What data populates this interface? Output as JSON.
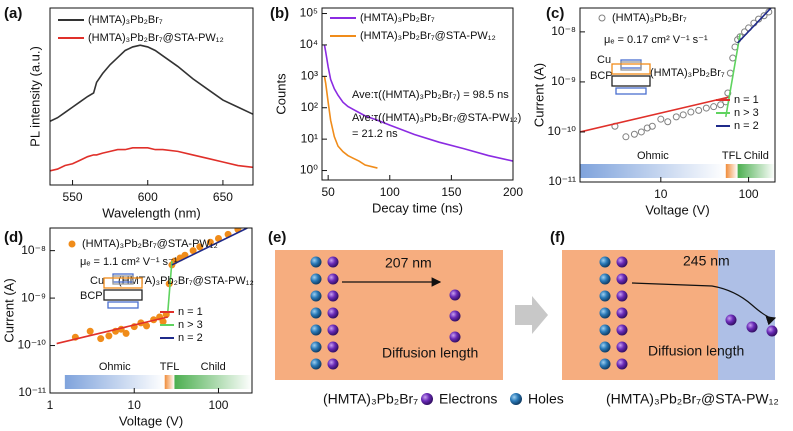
{
  "chart_data": [
    {
      "panel": "(a)",
      "type": "line",
      "xlabel": "Wavelength (nm)",
      "ylabel": "PL intensity (a.u.)",
      "xlim": [
        535,
        670
      ],
      "xticks": [
        550,
        600,
        650
      ],
      "ylim": [
        0,
        1
      ],
      "series": [
        {
          "name": "(HMTA)₃Pb₂Br₇",
          "color": "#333333",
          "style": "line",
          "x": [
            535,
            540,
            545,
            550,
            555,
            560,
            564,
            566,
            570,
            575,
            580,
            585,
            590,
            595,
            600,
            605,
            610,
            620,
            630,
            640,
            650,
            660,
            670
          ],
          "values": [
            0.36,
            0.38,
            0.41,
            0.44,
            0.47,
            0.5,
            0.52,
            0.58,
            0.63,
            0.68,
            0.72,
            0.76,
            0.78,
            0.79,
            0.78,
            0.76,
            0.73,
            0.67,
            0.6,
            0.54,
            0.48,
            0.44,
            0.4
          ]
        },
        {
          "name": "(HMTA)₃Pb₂Br₇@STA-PW₁₂",
          "color": "#e0302a",
          "style": "line",
          "x": [
            535,
            540,
            545,
            550,
            555,
            560,
            564,
            566,
            570,
            575,
            580,
            585,
            590,
            595,
            600,
            605,
            610,
            620,
            630,
            640,
            650,
            660,
            670
          ],
          "values": [
            0.08,
            0.09,
            0.11,
            0.12,
            0.14,
            0.16,
            0.17,
            0.17,
            0.18,
            0.19,
            0.2,
            0.2,
            0.21,
            0.21,
            0.21,
            0.2,
            0.2,
            0.19,
            0.17,
            0.15,
            0.13,
            0.11,
            0.1
          ]
        }
      ]
    },
    {
      "panel": "(b)",
      "type": "line",
      "xlabel": "Decay time (ns)",
      "ylabel": "Counts",
      "xlim": [
        45,
        200
      ],
      "xticks": [
        50,
        100,
        150,
        200
      ],
      "ylog": true,
      "ylim": [
        0.5,
        150000
      ],
      "yticks": [
        {
          "value": 1,
          "label": "10⁰"
        },
        {
          "value": 10,
          "label": "10¹"
        },
        {
          "value": 100,
          "label": "10²"
        },
        {
          "value": 1000,
          "label": "10³"
        },
        {
          "value": 10000,
          "label": "10⁴"
        },
        {
          "value": 100000,
          "label": "10⁵"
        }
      ],
      "series": [
        {
          "name": "(HMTA)₃Pb₂Br₇",
          "color": "#8b2be2",
          "style": "line",
          "x": [
            47,
            48,
            50,
            52,
            55,
            58,
            62,
            66,
            70,
            80,
            90,
            100,
            120,
            140,
            160,
            180,
            200
          ],
          "values": [
            10000,
            6000,
            2000,
            800,
            400,
            250,
            150,
            110,
            90,
            55,
            40,
            28,
            14,
            8,
            5,
            3,
            2
          ]
        },
        {
          "name": "(HMTA)₃Pb₂Br₇@STA-PW₁₂",
          "color": "#f08c1a",
          "style": "line",
          "x": [
            47,
            48,
            50,
            52,
            55,
            58,
            62,
            66,
            70,
            75,
            80,
            90
          ],
          "values": [
            1000,
            600,
            150,
            40,
            12,
            6,
            4,
            3,
            2.5,
            2,
            1.5,
            1.2
          ]
        }
      ],
      "annotations": [
        "Ave:τ((HMTA)₃Pb₂Br₇) = 98.5 ns",
        "Ave:τ((HMTA)₃Pb₂Br₇@STA-PW₁₂)",
        "= 21.2 ns"
      ]
    },
    {
      "panel": "(c)",
      "type": "line",
      "xlabel": "Voltage (V)",
      "ylabel": "Current (A)",
      "xlog": true,
      "xlim": [
        1.2,
        200
      ],
      "xticks": [
        10,
        100
      ],
      "ylog": true,
      "ylim": [
        1e-11,
        3e-08
      ],
      "yticks": [
        {
          "value": 1e-11,
          "label": "10⁻¹¹"
        },
        {
          "value": 1e-10,
          "label": "10⁻¹⁰"
        },
        {
          "value": 1e-09,
          "label": "10⁻⁹"
        },
        {
          "value": 1e-08,
          "label": "10⁻⁸"
        }
      ],
      "series": [
        {
          "name": "(HMTA)₃Pb₂Br₇",
          "color": "#808080",
          "style": "scatter",
          "marker": "open",
          "x": [
            3,
            4,
            5,
            6,
            7,
            8,
            10,
            12,
            15,
            18,
            22,
            27,
            33,
            40,
            48,
            55,
            58,
            62,
            66,
            70,
            75,
            80,
            90,
            100,
            115,
            130,
            150,
            170
          ],
          "values": [
            1.3e-10,
            8e-11,
            9e-11,
            1e-10,
            1.2e-10,
            1.3e-10,
            1.8e-10,
            1.6e-10,
            2e-10,
            2.2e-10,
            2.5e-10,
            2.7e-10,
            3e-10,
            3.2e-10,
            3.5e-10,
            4e-10,
            6e-10,
            1.5e-09,
            3e-09,
            5e-09,
            7e-09,
            8e-09,
            1e-08,
            1.2e-08,
            1.5e-08,
            1.8e-08,
            2.1e-08,
            2.5e-08
          ]
        },
        {
          "name": "n = 1",
          "color": "#e0302a",
          "style": "line",
          "x": [
            1.2,
            60
          ],
          "values": [
            1e-10,
            5e-10
          ]
        },
        {
          "name": "n > 3",
          "color": "#5fd35f",
          "style": "line",
          "x": [
            55,
            80
          ],
          "values": [
            2e-10,
            9e-09
          ]
        },
        {
          "name": "n = 2",
          "color": "#1f2a8a",
          "style": "line",
          "x": [
            75,
            180
          ],
          "values": [
            6e-09,
            3e-08
          ]
        }
      ],
      "regions": [
        {
          "label": "Ohmic",
          "color": "#7fa3dc",
          "x": [
            1.2,
            55
          ]
        },
        {
          "label": "TFL",
          "color": "#f08c3a",
          "x": [
            55,
            75
          ]
        },
        {
          "label": "Child",
          "color": "#4caf50",
          "x": [
            75,
            200
          ]
        }
      ],
      "annotations": [
        "μₑ = 0.17 cm² V⁻¹ s⁻¹",
        "Cu",
        "BCP",
        "(HMTA)₃Pb₂Br₇"
      ]
    },
    {
      "panel": "(d)",
      "type": "line",
      "xlabel": "Voltage (V)",
      "ylabel": "Current (A)",
      "xlog": true,
      "xlim": [
        1,
        250
      ],
      "xticks": [
        1,
        10,
        100
      ],
      "ylog": true,
      "ylim": [
        1e-11,
        3e-08
      ],
      "yticks": [
        {
          "value": 1e-11,
          "label": "10⁻¹¹"
        },
        {
          "value": 1e-10,
          "label": "10⁻¹⁰"
        },
        {
          "value": 1e-09,
          "label": "10⁻⁹"
        },
        {
          "value": 1e-08,
          "label": "10⁻⁸"
        }
      ],
      "series": [
        {
          "name": "(HMTA)₃Pb₂Br₇@STA-PW₁₂",
          "color": "#f08c1a",
          "style": "scatter",
          "marker": "filled",
          "x": [
            2,
            3,
            4,
            5,
            6,
            7,
            8,
            10,
            12,
            14,
            17,
            20,
            22,
            24,
            26,
            28,
            30,
            35,
            40,
            50,
            60,
            80,
            100,
            130,
            170
          ],
          "values": [
            1.5e-10,
            2e-10,
            1.4e-10,
            1.6e-10,
            2e-10,
            2.2e-10,
            1.8e-10,
            2.5e-10,
            3e-10,
            2.6e-10,
            3.5e-10,
            4e-10,
            3.2e-10,
            4.5e-10,
            2e-09,
            5e-09,
            6e-09,
            7e-09,
            8e-09,
            1e-08,
            1.2e-08,
            1.5e-08,
            1.8e-08,
            2.2e-08,
            2.8e-08
          ]
        },
        {
          "name": "n = 1",
          "color": "#e0302a",
          "style": "line",
          "x": [
            1.2,
            25
          ],
          "values": [
            1.1e-10,
            4e-10
          ]
        },
        {
          "name": "n > 3",
          "color": "#5fd35f",
          "style": "line",
          "x": [
            25,
            28
          ],
          "values": [
            5e-10,
            6e-09
          ]
        },
        {
          "name": "n = 2",
          "color": "#1f2a8a",
          "style": "line",
          "x": [
            28,
            220
          ],
          "values": [
            5e-09,
            3e-08
          ]
        }
      ],
      "regions": [
        {
          "label": "Ohmic",
          "color": "#7fa3dc",
          "x": [
            1.5,
            23
          ]
        },
        {
          "label": "TFL",
          "color": "#f08c3a",
          "x": [
            23,
            30
          ]
        },
        {
          "label": "Child",
          "color": "#4caf50",
          "x": [
            30,
            250
          ]
        }
      ],
      "annotations": [
        "μₑ = 1.1 cm² V⁻¹ s⁻¹",
        "Cu",
        "BCP",
        "(HMTA)₃Pb₂Br₇@STA-PW₁₂"
      ]
    }
  ],
  "diagrams": [
    {
      "panel": "(e)",
      "distance": "207 nm",
      "caption": "Diffusion length"
    },
    {
      "panel": "(f)",
      "distance": "245 nm",
      "caption": "Diffusion length"
    }
  ],
  "key": {
    "material_1": "(HMTA)₃Pb₂Br₇",
    "electrons": "Electrons",
    "holes": "Holes",
    "material_2": "(HMTA)₃Pb₂Br₇@STA-PW₁₂"
  }
}
